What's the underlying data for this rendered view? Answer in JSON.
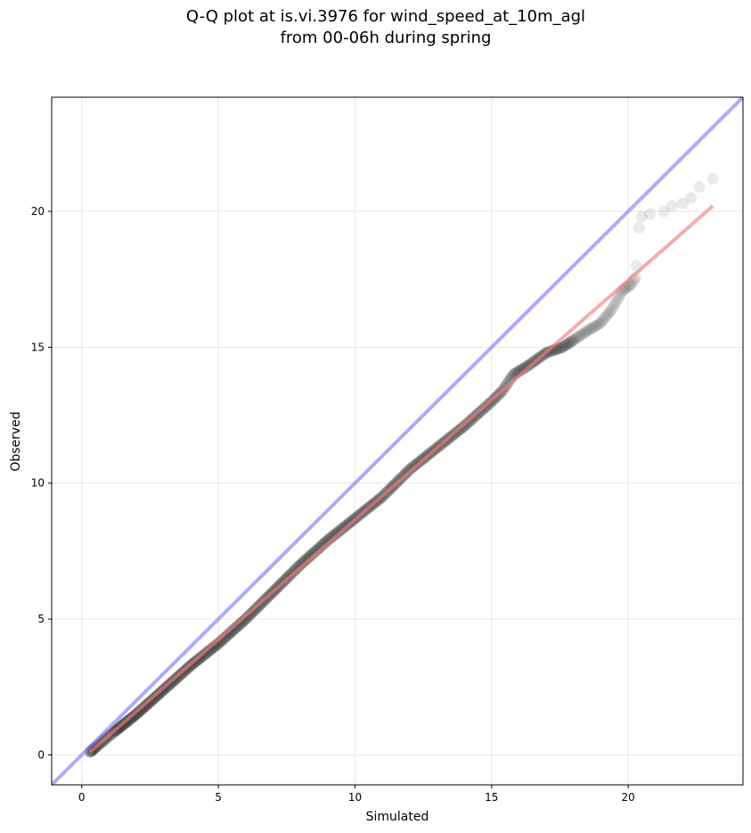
{
  "chart_data": {
    "type": "scatter",
    "title": [
      "Q-Q plot at is.vi.3976 for wind_speed_at_10m_agl",
      "from 00-06h during spring"
    ],
    "xlabel": "Simulated",
    "ylabel": "Observed",
    "xlim": [
      -1.1,
      24.2
    ],
    "ylim": [
      -1.1,
      24.2
    ],
    "grid": true,
    "x_ticks": [
      0,
      5,
      10,
      15,
      20
    ],
    "y_ticks": [
      0,
      5,
      10,
      15,
      20
    ],
    "colors": {
      "points": "#333333",
      "identity_line": "#7f7ff0",
      "fit_line": "#f08080",
      "grid": "#e6e6e6"
    },
    "reference_lines": [
      {
        "kind": "identity",
        "x": [
          -1.1,
          24.2
        ],
        "y": [
          -1.1,
          24.2
        ]
      },
      {
        "kind": "fit",
        "x": [
          0.3,
          23.1
        ],
        "y": [
          0.1,
          20.2
        ]
      }
    ],
    "quantile_anchors_x": [
      0.3,
      1.0,
      2.0,
      3.0,
      4.0,
      5.0,
      6.0,
      7.0,
      8.0,
      9.0,
      10.0,
      11.0,
      12.0,
      13.0,
      14.0,
      15.0,
      15.4,
      15.8,
      16.3,
      17.0,
      17.6,
      18.5,
      19.0,
      19.4,
      19.8,
      20.1,
      20.3
    ],
    "quantile_anchors_y": [
      0.1,
      0.7,
      1.5,
      2.4,
      3.3,
      4.1,
      5.0,
      6.0,
      7.0,
      7.9,
      8.7,
      9.5,
      10.5,
      11.3,
      12.1,
      13.0,
      13.4,
      14.0,
      14.3,
      14.8,
      15.0,
      15.6,
      15.9,
      16.4,
      17.1,
      17.3,
      17.6
    ],
    "dense_range_x": [
      0.3,
      20.3
    ],
    "dense_point_count": 520,
    "tail_points": [
      {
        "x": 20.3,
        "y": 18.0
      },
      {
        "x": 20.4,
        "y": 19.4
      },
      {
        "x": 20.5,
        "y": 19.8
      },
      {
        "x": 20.8,
        "y": 19.9
      },
      {
        "x": 21.3,
        "y": 20.0
      },
      {
        "x": 21.6,
        "y": 20.2
      },
      {
        "x": 22.0,
        "y": 20.3
      },
      {
        "x": 22.3,
        "y": 20.5
      },
      {
        "x": 22.6,
        "y": 20.9
      },
      {
        "x": 23.1,
        "y": 21.2
      }
    ]
  }
}
